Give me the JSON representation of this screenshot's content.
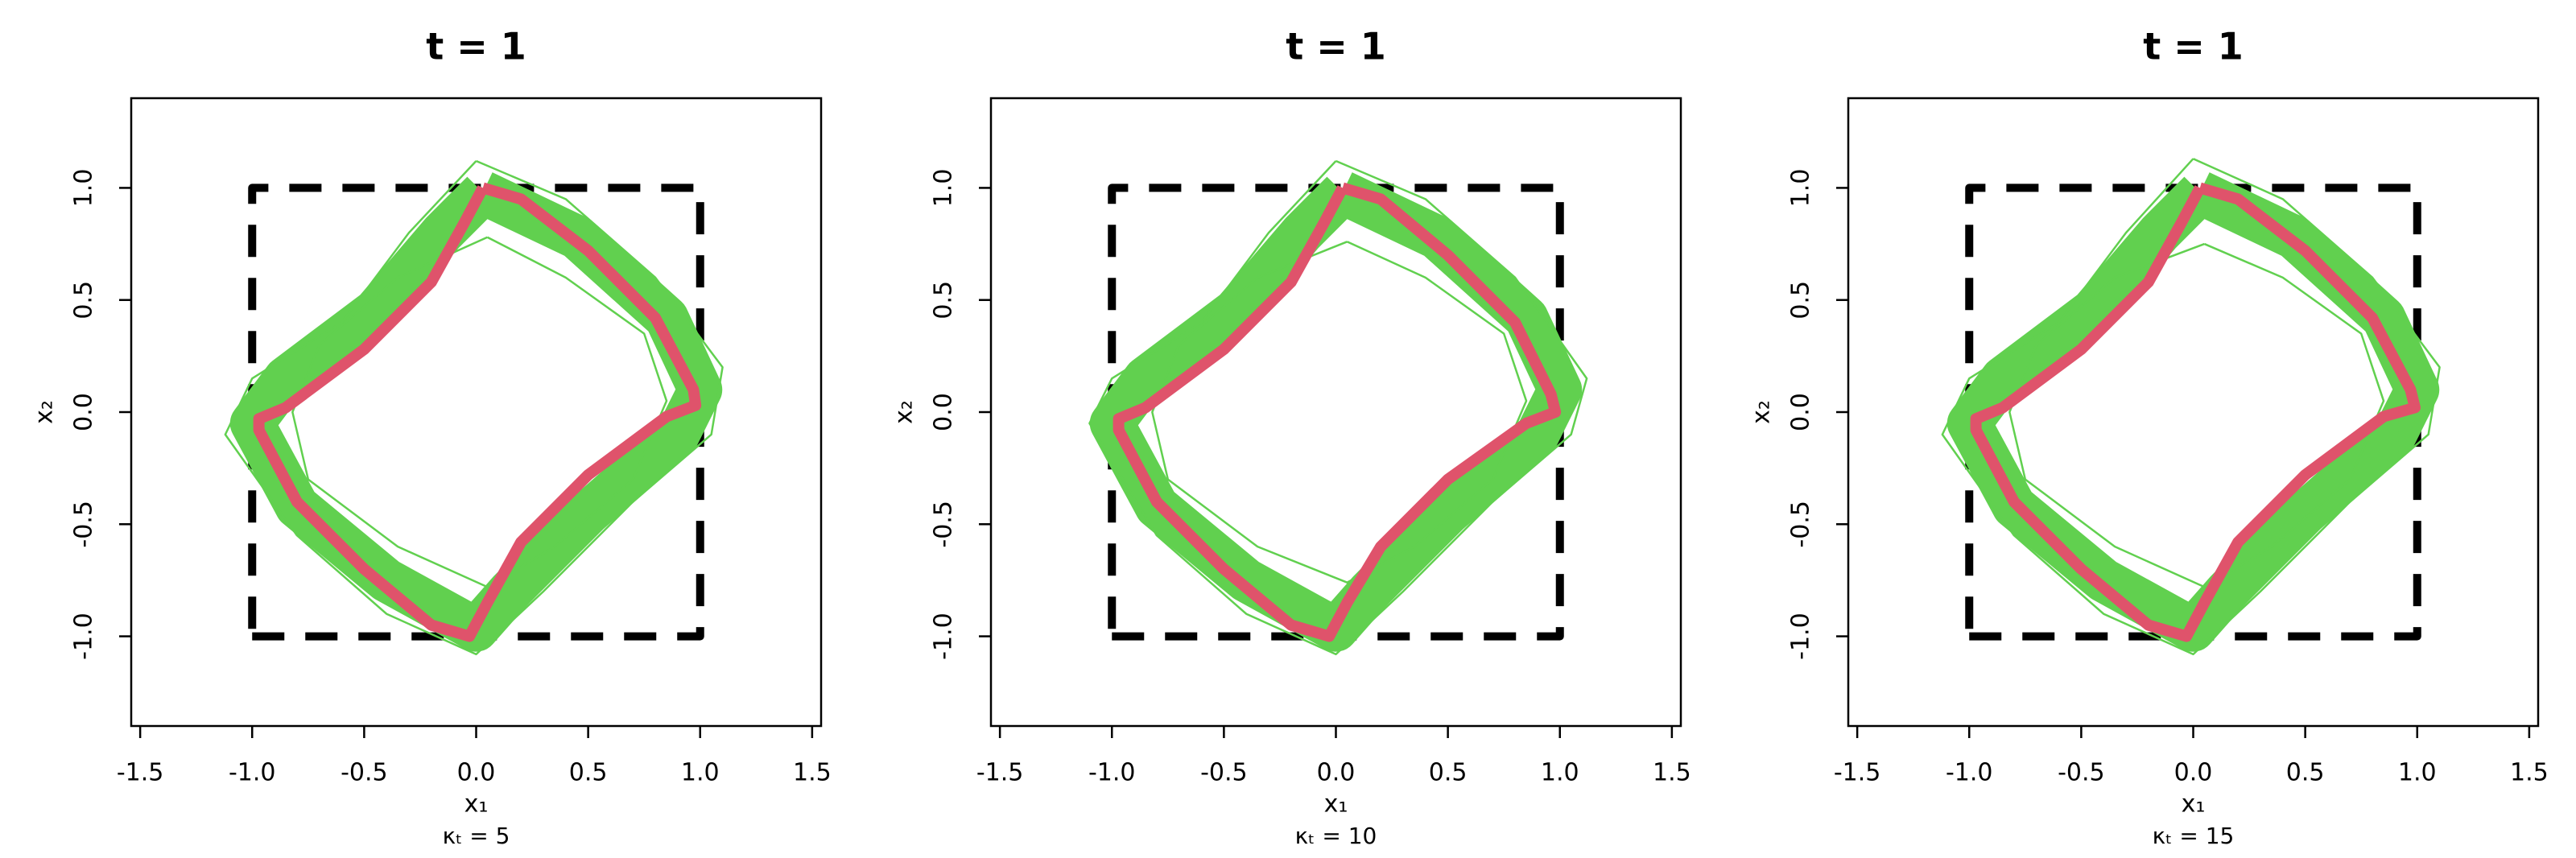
{
  "chart_data": [
    {
      "type": "line",
      "title": "t = 1",
      "xlabel": "x₁",
      "ylabel": "x₂",
      "caption": "κₜ = 5",
      "xlim": [
        -1.54,
        1.54
      ],
      "ylim": [
        -1.4,
        1.4
      ],
      "xticks": [
        -1.5,
        {
          "value": -1,
          "label": "-1.0"
        },
        -0.5,
        {
          "value": 0,
          "label": "0.0"
        },
        0.5,
        {
          "value": 1,
          "label": "1.0"
        },
        1.5
      ],
      "yticks": [
        {
          "value": -1,
          "label": "-1.0"
        },
        -0.5,
        {
          "value": 0,
          "label": "0.0"
        },
        0.5,
        {
          "value": 1,
          "label": "1.0"
        }
      ],
      "series": [
        {
          "color": "#000000",
          "linestyle": "dashed",
          "x": [
            -1,
            1,
            1,
            -1,
            -1
          ],
          "values": [
            -1,
            -1,
            1,
            1,
            -1
          ]
        },
        {
          "color": "#61d04f",
          "x": [
            0.03,
            0.45,
            0.85,
            1.0,
            0.9,
            0.5,
            0.15,
            0,
            -0.4,
            -0.8,
            -1.0,
            -0.85,
            -0.45,
            -0.15,
            0.03
          ],
          "values": [
            0.98,
            0.78,
            0.42,
            0.1,
            -0.1,
            -0.45,
            -0.8,
            -0.97,
            -0.75,
            -0.42,
            -0.05,
            0.15,
            0.45,
            0.8,
            0.98
          ]
        },
        {
          "color": "#61d04f",
          "x": [
            0,
            0.4,
            0.8,
            1.1,
            1.05,
            0.7,
            0.3,
            0,
            -0.4,
            -0.8,
            -1.12,
            -1.0,
            -0.6,
            -0.3,
            0
          ],
          "values": [
            1.12,
            0.95,
            0.6,
            0.2,
            -0.1,
            -0.4,
            -0.8,
            -1.08,
            -0.9,
            -0.55,
            -0.1,
            0.15,
            0.4,
            0.8,
            1.12
          ]
        },
        {
          "color": "#61d04f",
          "x": [
            0.05,
            0.4,
            0.75,
            0.85,
            0.7,
            0.35,
            0.05,
            -0.35,
            -0.75,
            -0.82,
            -0.7,
            -0.35,
            0.05
          ],
          "values": [
            0.78,
            0.6,
            0.35,
            0.05,
            -0.3,
            -0.6,
            -0.78,
            -0.6,
            -0.3,
            0,
            0.3,
            0.6,
            0.78
          ]
        },
        {
          "color": "#df536b",
          "x": [
            0.03,
            0.2,
            0.5,
            0.8,
            0.97,
            0.98,
            0.85,
            0.5,
            0.2,
            0.05,
            -0.03,
            -0.2,
            -0.5,
            -0.8,
            -0.97,
            -0.97,
            -0.85,
            -0.5,
            -0.2,
            -0.05,
            0.03
          ],
          "values": [
            1.0,
            0.95,
            0.72,
            0.42,
            0.1,
            0.03,
            -0.02,
            -0.28,
            -0.58,
            -0.85,
            -1.0,
            -0.95,
            -0.7,
            -0.4,
            -0.08,
            -0.03,
            0.02,
            0.28,
            0.58,
            0.85,
            1.0
          ]
        }
      ]
    },
    {
      "type": "line",
      "title": "t = 1",
      "xlabel": "x₁",
      "ylabel": "x₂",
      "caption": "κₜ = 10",
      "xlim": [
        -1.54,
        1.54
      ],
      "ylim": [
        -1.4,
        1.4
      ],
      "xticks": [
        -1.5,
        {
          "value": -1,
          "label": "-1.0"
        },
        -0.5,
        {
          "value": 0,
          "label": "0.0"
        },
        0.5,
        {
          "value": 1,
          "label": "1.0"
        },
        1.5
      ],
      "yticks": [
        {
          "value": -1,
          "label": "-1.0"
        },
        -0.5,
        {
          "value": 0,
          "label": "0.0"
        },
        0.5,
        {
          "value": 1,
          "label": "1.0"
        }
      ],
      "series": [
        {
          "color": "#000000",
          "linestyle": "dashed",
          "x": [
            -1,
            1,
            1,
            -1,
            -1
          ],
          "values": [
            -1,
            -1,
            1,
            1,
            -1
          ]
        },
        {
          "color": "#61d04f",
          "x": [
            0.03,
            0.45,
            0.85,
            1.0,
            0.9,
            0.5,
            0.15,
            0,
            -0.4,
            -0.8,
            -1.0,
            -0.85,
            -0.45,
            -0.15,
            0.03
          ],
          "values": [
            0.98,
            0.78,
            0.42,
            0.1,
            -0.1,
            -0.45,
            -0.8,
            -0.97,
            -0.75,
            -0.42,
            -0.05,
            0.15,
            0.45,
            0.8,
            0.98
          ]
        },
        {
          "color": "#61d04f",
          "x": [
            0,
            0.4,
            0.8,
            1.12,
            1.05,
            0.7,
            0.3,
            0,
            -0.4,
            -0.8,
            -1.1,
            -1.0,
            -0.6,
            -0.3,
            0
          ],
          "values": [
            1.12,
            0.95,
            0.6,
            0.15,
            -0.1,
            -0.4,
            -0.8,
            -1.08,
            -0.9,
            -0.55,
            -0.05,
            0.15,
            0.4,
            0.8,
            1.12
          ]
        },
        {
          "color": "#61d04f",
          "x": [
            0.05,
            0.4,
            0.75,
            0.85,
            0.7,
            0.35,
            0.05,
            -0.35,
            -0.75,
            -0.82,
            -0.7,
            -0.35,
            0.05
          ],
          "values": [
            0.76,
            0.6,
            0.35,
            0.05,
            -0.3,
            -0.6,
            -0.76,
            -0.6,
            -0.3,
            0,
            0.3,
            0.6,
            0.76
          ]
        },
        {
          "color": "#df536b",
          "x": [
            0.03,
            0.2,
            0.5,
            0.8,
            0.96,
            0.98,
            0.85,
            0.5,
            0.2,
            0.05,
            -0.03,
            -0.2,
            -0.5,
            -0.8,
            -0.97,
            -0.97,
            -0.85,
            -0.5,
            -0.2,
            -0.05,
            0.03
          ],
          "values": [
            1.0,
            0.95,
            0.7,
            0.4,
            0.08,
            0.0,
            -0.05,
            -0.3,
            -0.6,
            -0.85,
            -1.0,
            -0.95,
            -0.7,
            -0.4,
            -0.08,
            -0.03,
            0.02,
            0.28,
            0.58,
            0.85,
            1.0
          ]
        }
      ]
    },
    {
      "type": "line",
      "title": "t = 1",
      "xlabel": "x₁",
      "ylabel": "x₂",
      "caption": "κₜ = 15",
      "xlim": [
        -1.54,
        1.54
      ],
      "ylim": [
        -1.4,
        1.4
      ],
      "xticks": [
        -1.5,
        {
          "value": -1,
          "label": "-1.0"
        },
        -0.5,
        {
          "value": 0,
          "label": "0.0"
        },
        0.5,
        {
          "value": 1,
          "label": "1.0"
        },
        1.5
      ],
      "yticks": [
        {
          "value": -1,
          "label": "-1.0"
        },
        -0.5,
        {
          "value": 0,
          "label": "0.0"
        },
        0.5,
        {
          "value": 1,
          "label": "1.0"
        }
      ],
      "series": [
        {
          "color": "#000000",
          "linestyle": "dashed",
          "x": [
            -1,
            1,
            1,
            -1,
            -1
          ],
          "values": [
            -1,
            -1,
            1,
            1,
            -1
          ]
        },
        {
          "color": "#61d04f",
          "x": [
            0.03,
            0.45,
            0.85,
            1.0,
            0.9,
            0.5,
            0.15,
            0,
            -0.4,
            -0.8,
            -1.0,
            -0.85,
            -0.45,
            -0.15,
            0.03
          ],
          "values": [
            0.98,
            0.78,
            0.42,
            0.1,
            -0.1,
            -0.45,
            -0.8,
            -0.97,
            -0.75,
            -0.42,
            -0.05,
            0.15,
            0.45,
            0.8,
            0.98
          ]
        },
        {
          "color": "#61d04f",
          "x": [
            0,
            0.4,
            0.8,
            1.1,
            1.05,
            0.7,
            0.3,
            0,
            -0.4,
            -0.8,
            -1.12,
            -1.0,
            -0.6,
            -0.3,
            0
          ],
          "values": [
            1.13,
            0.95,
            0.6,
            0.2,
            -0.1,
            -0.4,
            -0.8,
            -1.08,
            -0.9,
            -0.55,
            -0.1,
            0.15,
            0.4,
            0.8,
            1.13
          ]
        },
        {
          "color": "#61d04f",
          "x": [
            0.05,
            0.4,
            0.75,
            0.85,
            0.7,
            0.35,
            0.05,
            -0.35,
            -0.75,
            -0.82,
            -0.7,
            -0.35,
            0.05
          ],
          "values": [
            0.75,
            0.6,
            0.35,
            0.05,
            -0.3,
            -0.6,
            -0.78,
            -0.6,
            -0.3,
            0,
            0.3,
            0.6,
            0.75
          ]
        },
        {
          "color": "#df536b",
          "x": [
            0.03,
            0.2,
            0.5,
            0.8,
            0.97,
            0.99,
            0.85,
            0.5,
            0.2,
            0.05,
            -0.03,
            -0.2,
            -0.5,
            -0.8,
            -0.97,
            -0.97,
            -0.85,
            -0.5,
            -0.2,
            -0.05,
            0.03
          ],
          "values": [
            1.0,
            0.95,
            0.72,
            0.42,
            0.1,
            0.02,
            -0.02,
            -0.28,
            -0.58,
            -0.85,
            -1.0,
            -0.95,
            -0.7,
            -0.4,
            -0.08,
            -0.03,
            0.02,
            0.28,
            0.58,
            0.85,
            1.0
          ]
        }
      ]
    }
  ]
}
